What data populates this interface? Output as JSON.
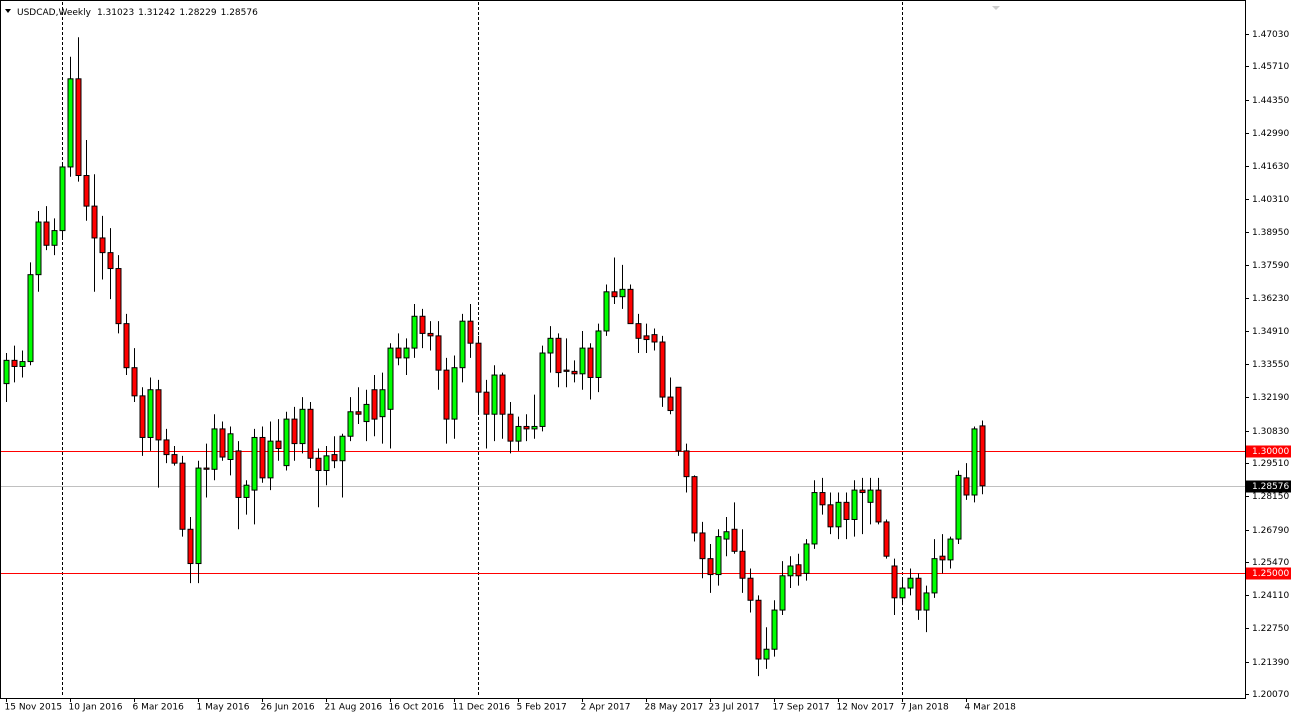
{
  "chart_data": {
    "type": "candlestick",
    "symbol": "USDCAD,Weekly",
    "open": [
      1.3275,
      1.337,
      1.3345,
      1.3365,
      1.372,
      1.3935,
      1.384,
      1.39,
      1.416,
      1.452,
      1.4125,
      1.4,
      1.387,
      1.381,
      1.3745,
      1.352,
      1.334,
      1.3225,
      1.3055,
      1.325,
      1.3045,
      1.2985,
      1.295,
      1.268,
      1.254,
      1.293,
      1.2925,
      1.309,
      1.2965,
      1.3,
      1.281,
      1.284,
      1.3055,
      1.289,
      1.304,
      1.294,
      1.313,
      1.303,
      1.317,
      1.297,
      1.292,
      1.2985,
      1.296,
      1.306,
      1.316,
      1.312,
      1.325,
      1.314,
      1.317,
      1.342,
      1.338,
      1.342,
      1.355,
      1.348,
      1.347,
      1.333,
      1.313,
      1.334,
      1.353,
      1.344,
      1.324,
      1.315,
      1.331,
      1.315,
      1.304,
      1.31,
      1.309,
      1.31,
      1.34,
      1.346,
      1.333,
      1.3325,
      1.3315,
      1.342,
      1.33,
      1.349,
      1.365,
      1.363,
      1.366,
      1.352,
      1.347,
      1.3475,
      1.3445,
      1.322,
      1.326,
      1.3,
      1.2895,
      1.2665,
      1.256,
      1.2495,
      1.264,
      1.268,
      1.259,
      1.248,
      1.239,
      1.215,
      1.219,
      1.235,
      1.249,
      1.2535,
      1.25,
      1.262,
      1.283,
      1.278,
      1.269,
      1.279,
      1.272,
      1.284,
      1.279,
      1.284,
      1.271,
      1.253,
      1.24,
      1.244,
      1.248,
      1.235,
      1.242,
      1.257,
      1.2555,
      1.264,
      1.289,
      1.282,
      1.31023
    ],
    "high": [
      1.34,
      1.343,
      1.341,
      1.377,
      1.398,
      1.4,
      1.395,
      1.418,
      1.461,
      1.469,
      1.427,
      1.413,
      1.396,
      1.391,
      1.38,
      1.356,
      1.342,
      1.326,
      1.33,
      1.329,
      1.309,
      1.302,
      1.298,
      1.273,
      1.296,
      1.303,
      1.315,
      1.312,
      1.31,
      1.304,
      1.288,
      1.309,
      1.31,
      1.312,
      1.313,
      1.316,
      1.318,
      1.322,
      1.32,
      1.301,
      1.302,
      1.306,
      1.307,
      1.322,
      1.326,
      1.325,
      1.331,
      1.332,
      1.344,
      1.348,
      1.346,
      1.36,
      1.358,
      1.353,
      1.353,
      1.338,
      1.339,
      1.356,
      1.36,
      1.347,
      1.329,
      1.335,
      1.332,
      1.32,
      1.314,
      1.315,
      1.323,
      1.343,
      1.351,
      1.348,
      1.346,
      1.337,
      1.349,
      1.344,
      1.352,
      1.368,
      1.379,
      1.376,
      1.368,
      1.356,
      1.352,
      1.35,
      1.347,
      1.33,
      1.326,
      1.303,
      1.29,
      1.271,
      1.262,
      1.268,
      1.273,
      1.279,
      1.268,
      1.252,
      1.241,
      1.228,
      1.239,
      1.255,
      1.257,
      1.258,
      1.264,
      1.288,
      1.289,
      1.283,
      1.283,
      1.283,
      1.288,
      1.289,
      1.289,
      1.289,
      1.272,
      1.256,
      1.248,
      1.252,
      1.25,
      1.245,
      1.264,
      1.266,
      1.265,
      1.292,
      1.295,
      1.31,
      1.31242
    ],
    "low": [
      1.32,
      1.328,
      1.33,
      1.335,
      1.365,
      1.382,
      1.38,
      1.387,
      1.412,
      1.41,
      1.394,
      1.365,
      1.37,
      1.362,
      1.348,
      1.331,
      1.32,
      1.298,
      1.3,
      1.285,
      1.295,
      1.294,
      1.265,
      1.246,
      1.246,
      1.281,
      1.288,
      1.296,
      1.29,
      1.268,
      1.274,
      1.27,
      1.287,
      1.284,
      1.296,
      1.292,
      1.296,
      1.299,
      1.293,
      1.277,
      1.286,
      1.293,
      1.281,
      1.304,
      1.311,
      1.304,
      1.306,
      1.303,
      1.301,
      1.335,
      1.331,
      1.338,
      1.342,
      1.341,
      1.325,
      1.303,
      1.305,
      1.328,
      1.338,
      1.315,
      1.301,
      1.304,
      1.305,
      1.299,
      1.3,
      1.304,
      1.305,
      1.308,
      1.332,
      1.326,
      1.326,
      1.328,
      1.325,
      1.321,
      1.324,
      1.347,
      1.36,
      1.358,
      1.352,
      1.34,
      1.34,
      1.341,
      1.318,
      1.315,
      1.298,
      1.283,
      1.263,
      1.248,
      1.242,
      1.245,
      1.257,
      1.258,
      1.242,
      1.234,
      1.208,
      1.211,
      1.216,
      1.233,
      1.244,
      1.245,
      1.247,
      1.26,
      1.274,
      1.266,
      1.264,
      1.264,
      1.265,
      1.266,
      1.27,
      1.27,
      1.256,
      1.233,
      1.237,
      1.241,
      1.231,
      1.226,
      1.24,
      1.25,
      1.252,
      1.262,
      1.28,
      1.279,
      1.28229
    ],
    "close": [
      1.337,
      1.3345,
      1.3365,
      1.372,
      1.3935,
      1.384,
      1.39,
      1.416,
      1.452,
      1.4125,
      1.4,
      1.387,
      1.381,
      1.3745,
      1.352,
      1.334,
      1.3225,
      1.3055,
      1.325,
      1.3045,
      1.2985,
      1.295,
      1.268,
      1.254,
      1.293,
      1.2925,
      1.309,
      1.2975,
      1.307,
      1.281,
      1.286,
      1.3055,
      1.289,
      1.304,
      1.301,
      1.313,
      1.303,
      1.317,
      1.297,
      1.292,
      1.298,
      1.296,
      1.306,
      1.316,
      1.315,
      1.319,
      1.313,
      1.325,
      1.342,
      1.338,
      1.342,
      1.355,
      1.348,
      1.347,
      1.333,
      1.313,
      1.334,
      1.353,
      1.344,
      1.324,
      1.315,
      1.331,
      1.315,
      1.304,
      1.31,
      1.309,
      1.31,
      1.34,
      1.346,
      1.332,
      1.3325,
      1.3315,
      1.342,
      1.33,
      1.349,
      1.365,
      1.363,
      1.366,
      1.352,
      1.346,
      1.3455,
      1.3445,
      1.322,
      1.3165,
      1.3,
      1.2895,
      1.2665,
      1.256,
      1.2495,
      1.265,
      1.267,
      1.259,
      1.248,
      1.239,
      1.215,
      1.219,
      1.235,
      1.249,
      1.253,
      1.249,
      1.262,
      1.283,
      1.278,
      1.269,
      1.279,
      1.272,
      1.284,
      1.283,
      1.284,
      1.271,
      1.257,
      1.24,
      1.244,
      1.248,
      1.235,
      1.242,
      1.256,
      1.2555,
      1.264,
      1.29,
      1.282,
      1.309,
      1.28576
    ],
    "up_color": "#00ff00",
    "down_color": "#ff0000",
    "xlim": [
      -0.75,
      154.875
    ],
    "ylim": [
      1.19908,
      1.48419
    ],
    "xticks": [
      {
        "value": 0,
        "label": "15 Nov 2015"
      },
      {
        "value": 8,
        "label": "10 Jan 2016"
      },
      {
        "value": 16,
        "label": "6 Mar 2016"
      },
      {
        "value": 24,
        "label": "1 May 2016"
      },
      {
        "value": 32,
        "label": "26 Jun 2016"
      },
      {
        "value": 40,
        "label": "21 Aug 2016"
      },
      {
        "value": 48,
        "label": "16 Oct 2016"
      },
      {
        "value": 56,
        "label": "11 Dec 2016"
      },
      {
        "value": 64,
        "label": "5 Feb 2017"
      },
      {
        "value": 72,
        "label": "2 Apr 2017"
      },
      {
        "value": 80,
        "label": "28 May 2017"
      },
      {
        "value": 88,
        "label": "23 Jul 2017"
      },
      {
        "value": 96,
        "label": "17 Sep 2017"
      },
      {
        "value": 104,
        "label": "12 Nov 2017"
      },
      {
        "value": 112,
        "label": "7 Jan 2018"
      },
      {
        "value": 120,
        "label": "4 Mar 2018"
      }
    ],
    "yticks": [
      {
        "value": 1.4703,
        "label": "1.47030"
      },
      {
        "value": 1.4571,
        "label": "1.45710"
      },
      {
        "value": 1.4435,
        "label": "1.44350"
      },
      {
        "value": 1.4299,
        "label": "1.42990"
      },
      {
        "value": 1.4163,
        "label": "1.41630"
      },
      {
        "value": 1.4031,
        "label": "1.40310"
      },
      {
        "value": 1.3895,
        "label": "1.38950"
      },
      {
        "value": 1.3759,
        "label": "1.37590"
      },
      {
        "value": 1.3623,
        "label": "1.36230"
      },
      {
        "value": 1.3491,
        "label": "1.34910"
      },
      {
        "value": 1.3355,
        "label": "1.33550"
      },
      {
        "value": 1.3219,
        "label": "1.32190"
      },
      {
        "value": 1.3083,
        "label": "1.30830"
      },
      {
        "value": 1.2951,
        "label": "1.29510"
      },
      {
        "value": 1.2815,
        "label": "1.28150"
      },
      {
        "value": 1.2679,
        "label": "1.26790"
      },
      {
        "value": 1.2547,
        "label": "1.25470"
      },
      {
        "value": 1.2411,
        "label": "1.24110"
      },
      {
        "value": 1.2275,
        "label": "1.22750"
      },
      {
        "value": 1.2139,
        "label": "1.21390"
      },
      {
        "value": 1.2007,
        "label": "1.20070"
      }
    ],
    "hlines": [
      {
        "value": 1.3,
        "label": "1.30000",
        "color": "#ff0000"
      },
      {
        "value": 1.25,
        "label": "1.25000",
        "color": "#ff0000"
      }
    ]
  }
}
